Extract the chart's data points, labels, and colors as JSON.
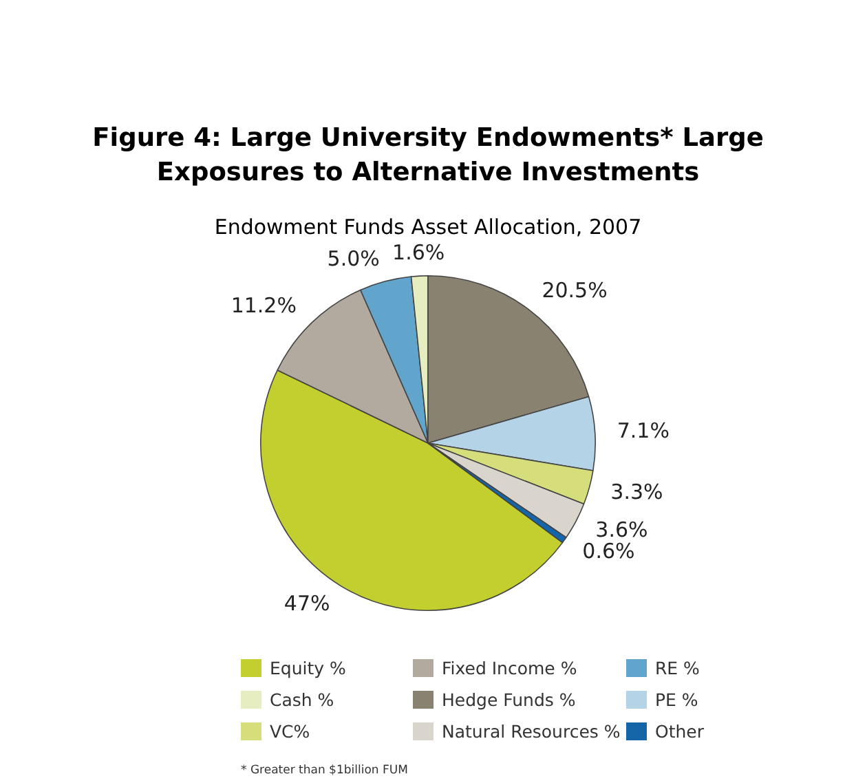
{
  "chart_data": {
    "type": "pie",
    "title": "Figure 4: Large University Endowments* Large Exposures to Alternative Investments",
    "subtitle": "Endowment Funds Asset Allocation, 2007",
    "categories": [
      "Equity %",
      "Fixed Income %",
      "RE %",
      "Cash %",
      "Hedge Funds %",
      "PE %",
      "VC%",
      "Natural Resources %",
      "Other"
    ],
    "values": [
      47,
      11.2,
      5.0,
      1.6,
      20.5,
      7.1,
      3.3,
      3.6,
      0.6
    ],
    "value_labels": [
      "47%",
      "11.2%",
      "5.0%",
      "1.6%",
      "20.5%",
      "7.1%",
      "3.3%",
      "3.6%",
      "0.6%"
    ],
    "colors": [
      "#c2cf2f",
      "#b3aa9f",
      "#62a5cc",
      "#e6edc0",
      "#8a8270",
      "#b4d3e6",
      "#d5de7a",
      "#d9d4cc",
      "#1466a8"
    ],
    "legend": "bottom",
    "annotations": [
      "* Greater than $1billion FUM"
    ]
  }
}
